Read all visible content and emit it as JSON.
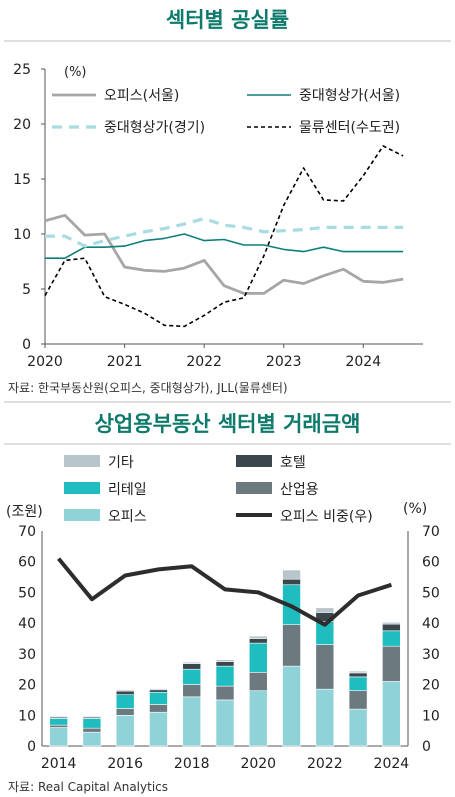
{
  "panel1": {
    "title": "섹터별 공실률",
    "source": "자료: 한국부동산원(오피스, 중대형상가), JLL(물류센터)"
  },
  "panel2": {
    "title": "상업용부동산 섹터별 거래금액",
    "source": "자료: Real Capital Analytics"
  },
  "chart_data": [
    {
      "type": "line",
      "title": "섹터별 공실률",
      "ylabel": "(%)",
      "ylim": [
        0,
        25
      ],
      "yticks": [
        "0",
        "5",
        "10",
        "15",
        "20",
        "25"
      ],
      "xlim": [
        2020,
        2024.75
      ],
      "xticks": [
        "2020",
        "2021",
        "2022",
        "2023",
        "2024"
      ],
      "legend": "top",
      "series": [
        {
          "name": "오피스(서울)",
          "color": "#a6a6a6",
          "dash": "solid",
          "x": [
            2020,
            2020.25,
            2020.5,
            2020.75,
            2021,
            2021.25,
            2021.5,
            2021.75,
            2022,
            2022.25,
            2022.5,
            2022.75,
            2023,
            2023.25,
            2023.5,
            2023.75,
            2024,
            2024.25,
            2024.5
          ],
          "values": [
            11.2,
            11.7,
            9.9,
            10.0,
            7.0,
            6.7,
            6.6,
            6.9,
            7.6,
            5.3,
            4.6,
            4.6,
            5.8,
            5.5,
            6.2,
            6.8,
            5.7,
            5.6,
            5.9
          ]
        },
        {
          "name": "중대형상가(서울)",
          "color": "#0e7f7a",
          "dash": "solid",
          "x": [
            2020,
            2020.25,
            2020.5,
            2020.75,
            2021,
            2021.25,
            2021.5,
            2021.75,
            2022,
            2022.25,
            2022.5,
            2022.75,
            2023,
            2023.25,
            2023.5,
            2023.75,
            2024,
            2024.25,
            2024.5
          ],
          "values": [
            7.8,
            7.8,
            8.8,
            8.8,
            8.9,
            9.4,
            9.6,
            10.0,
            9.4,
            9.5,
            9.0,
            9.0,
            8.6,
            8.4,
            8.8,
            8.4,
            8.4,
            8.4,
            8.4
          ]
        },
        {
          "name": "중대형상가(경기)",
          "color": "#a8dce0",
          "dash": "dashed",
          "x": [
            2020,
            2020.25,
            2020.5,
            2020.75,
            2021,
            2021.25,
            2021.5,
            2021.75,
            2022,
            2022.25,
            2022.5,
            2022.75,
            2023,
            2023.25,
            2023.5,
            2023.75,
            2024,
            2024.25,
            2024.5
          ],
          "values": [
            9.8,
            9.8,
            8.9,
            9.4,
            9.8,
            10.2,
            10.5,
            10.9,
            11.4,
            10.8,
            10.6,
            10.2,
            10.3,
            10.4,
            10.6,
            10.6,
            10.6,
            10.6,
            10.6
          ]
        },
        {
          "name": "물류센터(수도권)",
          "color": "#000000",
          "dash": "dotted",
          "x": [
            2020,
            2020.25,
            2020.5,
            2020.75,
            2021,
            2021.25,
            2021.5,
            2021.75,
            2022,
            2022.25,
            2022.5,
            2022.75,
            2023,
            2023.25,
            2023.5,
            2023.75,
            2024,
            2024.25,
            2024.5
          ],
          "values": [
            4.4,
            7.6,
            7.8,
            4.3,
            3.6,
            2.8,
            1.7,
            1.6,
            2.6,
            3.8,
            4.2,
            8.0,
            12.6,
            16.0,
            13.1,
            13.0,
            15.3,
            18.0,
            17.1
          ]
        }
      ]
    },
    {
      "type": "bar",
      "title": "상업용부동산 섹터별 거래금액",
      "ylabel": "(조원)",
      "ylim": [
        0,
        70
      ],
      "yticks": [
        "0",
        "10",
        "20",
        "30",
        "40",
        "50",
        "60",
        "70"
      ],
      "y2label": "(%)",
      "y2lim": [
        0,
        70
      ],
      "y2ticks": [
        "0",
        "10",
        "20",
        "30",
        "40",
        "50",
        "60",
        "70"
      ],
      "categories": [
        "2014",
        "2015",
        "2016",
        "2017",
        "2018",
        "2019",
        "2020",
        "2021",
        "2022",
        "2023",
        "2024"
      ],
      "xtick_labels": [
        "2014",
        "2016",
        "2018",
        "2020",
        "2022",
        "2024"
      ],
      "legend": "top",
      "stacked": true,
      "series": [
        {
          "name": "오피스",
          "color": "#8fd3d8",
          "values": [
            6.0,
            4.5,
            10.0,
            11.0,
            16.0,
            15.0,
            18.0,
            26.0,
            18.5,
            12.0,
            21.0
          ]
        },
        {
          "name": "산업용",
          "color": "#6c7a80",
          "values": [
            0.8,
            1.3,
            2.2,
            2.5,
            4.0,
            4.5,
            6.0,
            13.5,
            14.5,
            6.0,
            11.5
          ]
        },
        {
          "name": "리테일",
          "color": "#1fbcc0",
          "values": [
            2.2,
            3.2,
            4.5,
            4.0,
            5.0,
            6.5,
            9.5,
            13.0,
            7.5,
            4.5,
            5.0
          ]
        },
        {
          "name": "호텔",
          "color": "#3b474d",
          "values": [
            0.4,
            0.4,
            1.2,
            0.8,
            1.8,
            1.5,
            1.5,
            1.8,
            3.0,
            1.3,
            2.2
          ]
        },
        {
          "name": "기타",
          "color": "#b8c6cb",
          "values": [
            0.3,
            0.3,
            0.4,
            0.4,
            0.5,
            0.6,
            0.8,
            3.0,
            1.5,
            0.6,
            0.6
          ]
        }
      ],
      "line_series": {
        "name": "오피스 비중(우)",
        "color": "#2d2d2d",
        "axis": "right",
        "values": [
          61.0,
          47.8,
          55.5,
          57.5,
          58.5,
          51.0,
          50.0,
          45.5,
          39.5,
          49.0,
          52.5
        ]
      }
    }
  ]
}
